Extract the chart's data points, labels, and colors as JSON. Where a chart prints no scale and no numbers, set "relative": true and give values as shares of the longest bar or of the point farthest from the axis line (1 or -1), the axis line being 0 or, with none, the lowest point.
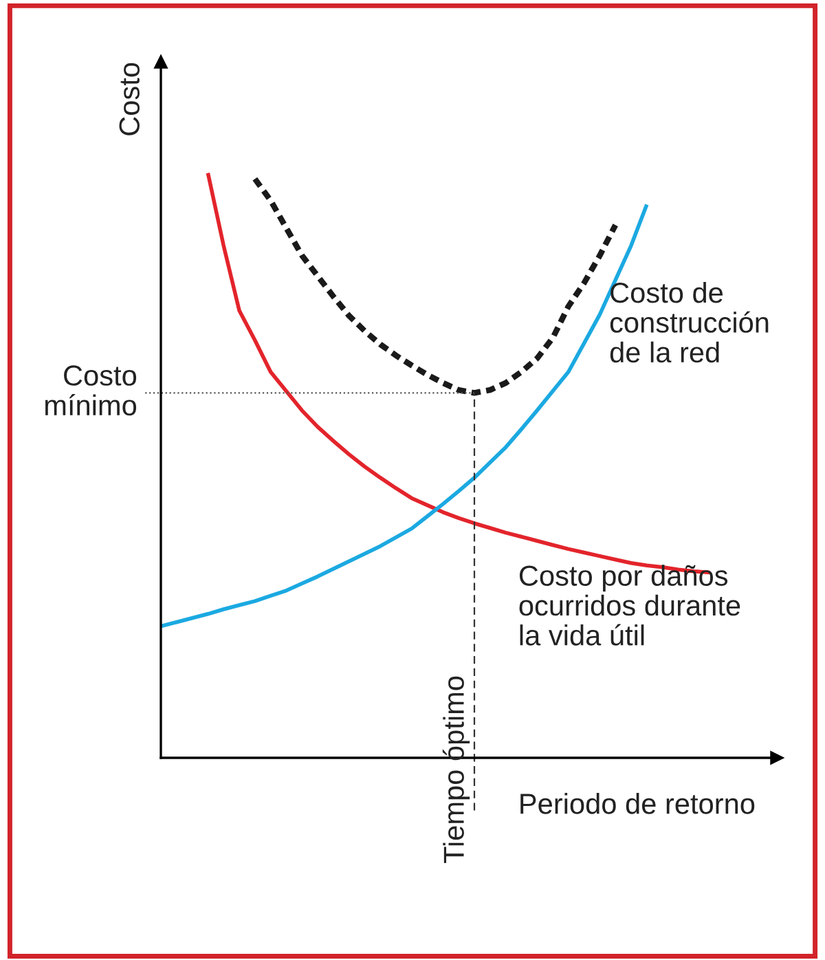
{
  "chart_data": {
    "type": "line",
    "relative": true,
    "xlabel": "Periodo de retorno",
    "ylabel": "Costo",
    "marker": "none",
    "annotations": [
      "Tiempo óptimo"
    ],
    "categories": [
      null,
      null,
      null,
      null,
      null,
      null,
      null,
      null,
      null,
      null,
      null,
      null,
      null,
      null,
      null,
      null,
      null,
      null,
      null,
      null,
      null,
      null,
      null,
      null,
      null,
      null,
      null,
      null,
      null,
      null,
      null,
      null,
      null,
      null,
      null,
      null,
      null,
      null,
      null,
      null
    ],
    "series": [
      {
        "name": "Costo por daños\nocurridos durante\nla vida útil",
        "color": "#e3242b",
        "line_style": "solid",
        "values": [
          null,
          null,
          null,
          1.0,
          0.876,
          0.765,
          0.714,
          0.66,
          0.627,
          0.594,
          0.566,
          0.542,
          0.519,
          0.498,
          0.479,
          0.461,
          0.444,
          0.432,
          0.42,
          0.41,
          0.401,
          0.393,
          0.385,
          0.378,
          0.371,
          0.364,
          0.357,
          0.351,
          0.345,
          0.339,
          0.333,
          0.329,
          0.326,
          0.322,
          0.319,
          0.317,
          null,
          null,
          null,
          null
        ]
      },
      {
        "name": "Costo de\nconstrucción\nde la red",
        "color": "#1ba9e1",
        "line_style": "solid",
        "values": [
          0.225,
          0.232,
          0.239,
          0.246,
          0.254,
          0.261,
          0.268,
          0.277,
          0.286,
          0.298,
          0.31,
          0.323,
          0.336,
          0.349,
          0.362,
          0.377,
          0.392,
          0.413,
          0.434,
          0.456,
          0.479,
          0.505,
          0.531,
          0.562,
          0.594,
          0.627,
          0.66,
          0.709,
          0.758,
          0.817,
          0.876,
          0.946,
          null,
          null,
          null,
          null,
          null,
          null,
          null,
          null
        ]
      },
      {
        "color": "#1a1a1a",
        "line_style": "dashed",
        "values": [
          null,
          null,
          null,
          null,
          null,
          null,
          0.99,
          0.953,
          0.906,
          0.859,
          0.824,
          0.789,
          0.756,
          0.73,
          0.707,
          0.688,
          0.671,
          0.655,
          0.641,
          0.629,
          0.624,
          0.629,
          0.641,
          0.66,
          0.683,
          0.718,
          0.772,
          0.812,
          0.859,
          0.911,
          null,
          null,
          null,
          null,
          null,
          null,
          null,
          null,
          null,
          null
        ]
      }
    ],
    "ref_lines": [
      {
        "axis": "y",
        "value": 0.624,
        "label": "Costo\nmínimo",
        "color": "#555555",
        "line_style": "dotted"
      }
    ]
  }
}
